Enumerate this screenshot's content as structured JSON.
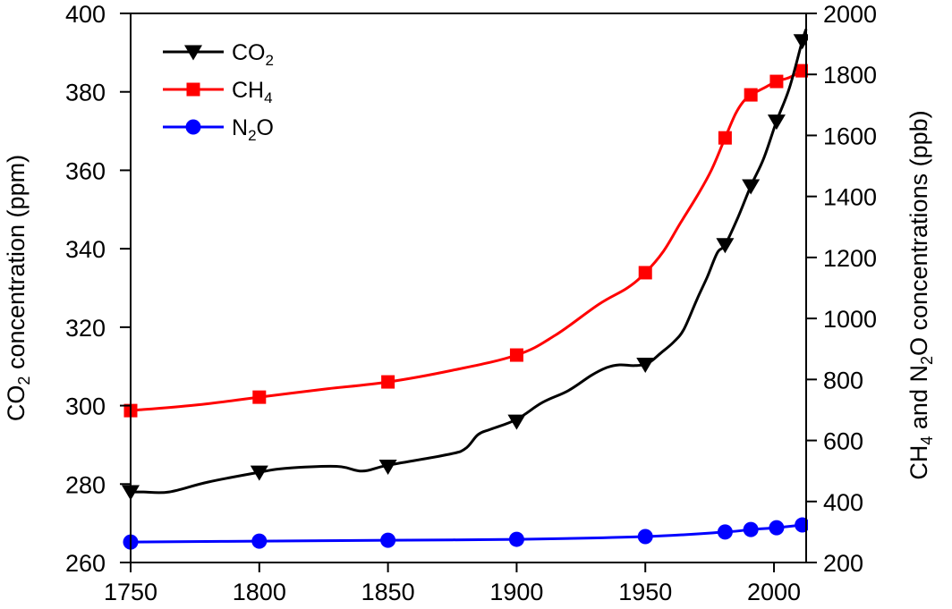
{
  "chart_data": {
    "type": "line",
    "title": "",
    "xlabel": "",
    "xlim": [
      1750,
      2012.5
    ],
    "x_ticks": [
      1750,
      1800,
      1850,
      1900,
      1950,
      2000
    ],
    "x_tick_labels": [
      "1750",
      "1800",
      "1850",
      "1900",
      "1950",
      "2000"
    ],
    "y_left": {
      "label_parts": [
        {
          "t": "CO",
          "sub": false
        },
        {
          "t": "2",
          "sub": true
        },
        {
          "t": " concentration (ppm)",
          "sub": false
        }
      ],
      "label": "CO2 concentration (ppm)",
      "ylim": [
        260,
        400
      ],
      "ticks": [
        260,
        280,
        300,
        320,
        340,
        360,
        380,
        400
      ],
      "tick_labels": [
        "260",
        "280",
        "300",
        "320",
        "340",
        "360",
        "380",
        "400"
      ]
    },
    "y_right": {
      "label_parts": [
        {
          "t": "CH",
          "sub": false
        },
        {
          "t": "4",
          "sub": true
        },
        {
          "t": " and N",
          "sub": false
        },
        {
          "t": "2",
          "sub": true
        },
        {
          "t": "O concentrations (ppb)",
          "sub": false
        }
      ],
      "label": "CH4 and N2O concentrations (ppb)",
      "ylim": [
        200,
        2000
      ],
      "ticks": [
        200,
        400,
        600,
        800,
        1000,
        1200,
        1400,
        1600,
        1800,
        2000
      ],
      "tick_labels": [
        "200",
        "400",
        "600",
        "800",
        "1000",
        "1200",
        "1400",
        "1600",
        "1800",
        "2000"
      ]
    },
    "grid": false,
    "legend_position": "top-left",
    "series": [
      {
        "name": "CO2",
        "legend_parts": [
          {
            "t": "CO",
            "sub": false
          },
          {
            "t": "2",
            "sub": true
          }
        ],
        "axis": "left",
        "color": "#000000",
        "marker": "triangle-down",
        "markers": {
          "x": [
            1750,
            1800,
            1850,
            1900,
            1950,
            1981,
            1991,
            2001,
            2011
          ],
          "y": [
            278,
            283,
            284.5,
            296,
            310.5,
            341,
            356,
            372.5,
            393
          ]
        },
        "curve": {
          "x": [
            1750,
            1755,
            1765,
            1780,
            1800,
            1810,
            1830,
            1840,
            1850,
            1873,
            1880,
            1885,
            1890,
            1900,
            1910,
            1920,
            1929,
            1935,
            1940,
            1946,
            1951,
            1956,
            1961,
            1965,
            1970,
            1974,
            1978,
            1981,
            1986,
            1991,
            1996,
            2001,
            2006,
            2011,
            2012.5
          ],
          "y": [
            278,
            278,
            278,
            280.5,
            283,
            284,
            284.5,
            283.3,
            284.8,
            287.5,
            289,
            292.6,
            294,
            296.5,
            300.8,
            303.8,
            307.7,
            309.7,
            310.4,
            310.2,
            310.8,
            313.4,
            316.2,
            319.5,
            327,
            332.7,
            339,
            341,
            348,
            356,
            363,
            372.5,
            381,
            393,
            396
          ]
        }
      },
      {
        "name": "CH4",
        "legend_parts": [
          {
            "t": "CH",
            "sub": false
          },
          {
            "t": "4",
            "sub": true
          }
        ],
        "axis": "right",
        "color": "#ff0000",
        "marker": "square",
        "markers": {
          "x": [
            1750,
            1800,
            1850,
            1900,
            1950,
            1981,
            1991,
            2001,
            2011
          ],
          "y": [
            698,
            742,
            792,
            880,
            1150,
            1592,
            1733,
            1777,
            1812
          ]
        },
        "curve": {
          "x": [
            1750,
            1775,
            1800,
            1825,
            1850,
            1875,
            1900,
            1915,
            1932,
            1943,
            1950,
            1957,
            1963.5,
            1970,
            1975.7,
            1981,
            1985,
            1988,
            1991,
            1996,
            2001,
            2006,
            2011,
            2012.5
          ],
          "y": [
            698,
            716,
            742,
            768,
            792,
            830,
            880,
            945,
            1047,
            1100,
            1150,
            1220,
            1311,
            1400,
            1487,
            1592,
            1670,
            1710,
            1733,
            1755,
            1777,
            1790,
            1812,
            1815
          ]
        }
      },
      {
        "name": "N2O",
        "legend_parts": [
          {
            "t": "N",
            "sub": false
          },
          {
            "t": "2",
            "sub": true
          },
          {
            "t": "O",
            "sub": false
          }
        ],
        "axis": "right",
        "color": "#0000ff",
        "marker": "circle",
        "markers": {
          "x": [
            1750,
            1800,
            1850,
            1900,
            1950,
            1981,
            1991,
            2001,
            2011
          ],
          "y": [
            267,
            270,
            273,
            276,
            285,
            300,
            308,
            314,
            323
          ]
        },
        "curve": {
          "x": [
            1750,
            1800,
            1850,
            1900,
            1950,
            1981,
            1991,
            2001,
            2011,
            2012.5
          ],
          "y": [
            267,
            270,
            273,
            276,
            285,
            300,
            308,
            314,
            323,
            324
          ]
        }
      }
    ]
  }
}
